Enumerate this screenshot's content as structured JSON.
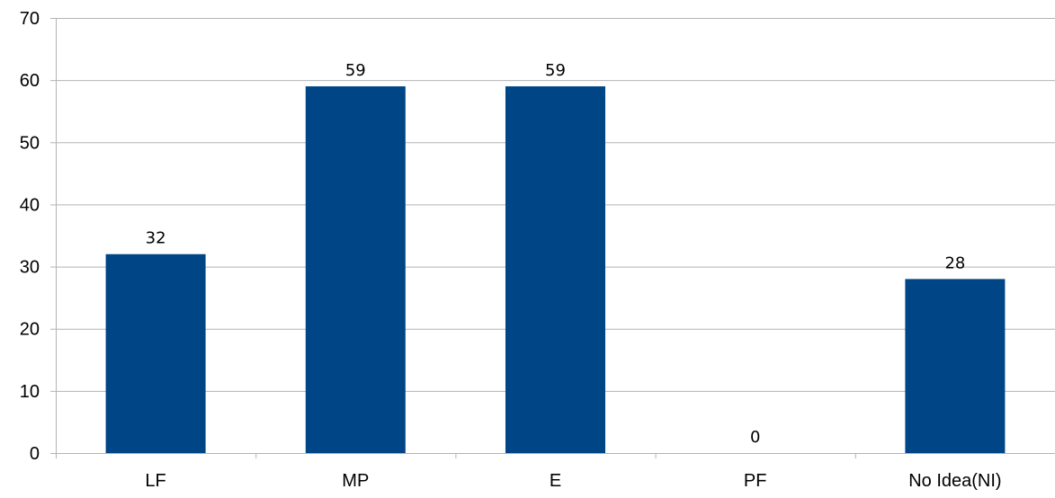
{
  "chart_data": {
    "type": "bar",
    "categories": [
      "LF",
      "MP",
      "E",
      "PF",
      "No Idea(NI)"
    ],
    "values": [
      32,
      59,
      59,
      0,
      28
    ],
    "data_labels": [
      "32",
      "59",
      "59",
      "0",
      "28"
    ],
    "ylim": [
      0,
      70
    ],
    "yticks": [
      0,
      10,
      20,
      30,
      40,
      50,
      60,
      70
    ],
    "ytick_labels": [
      "0",
      "10",
      "20",
      "30",
      "40",
      "50",
      "60",
      "70"
    ],
    "grid": true,
    "legend": "none",
    "bar_color": "#004586",
    "grid_color": "#b3b3b3",
    "axis_color": "#b3b3b3"
  }
}
